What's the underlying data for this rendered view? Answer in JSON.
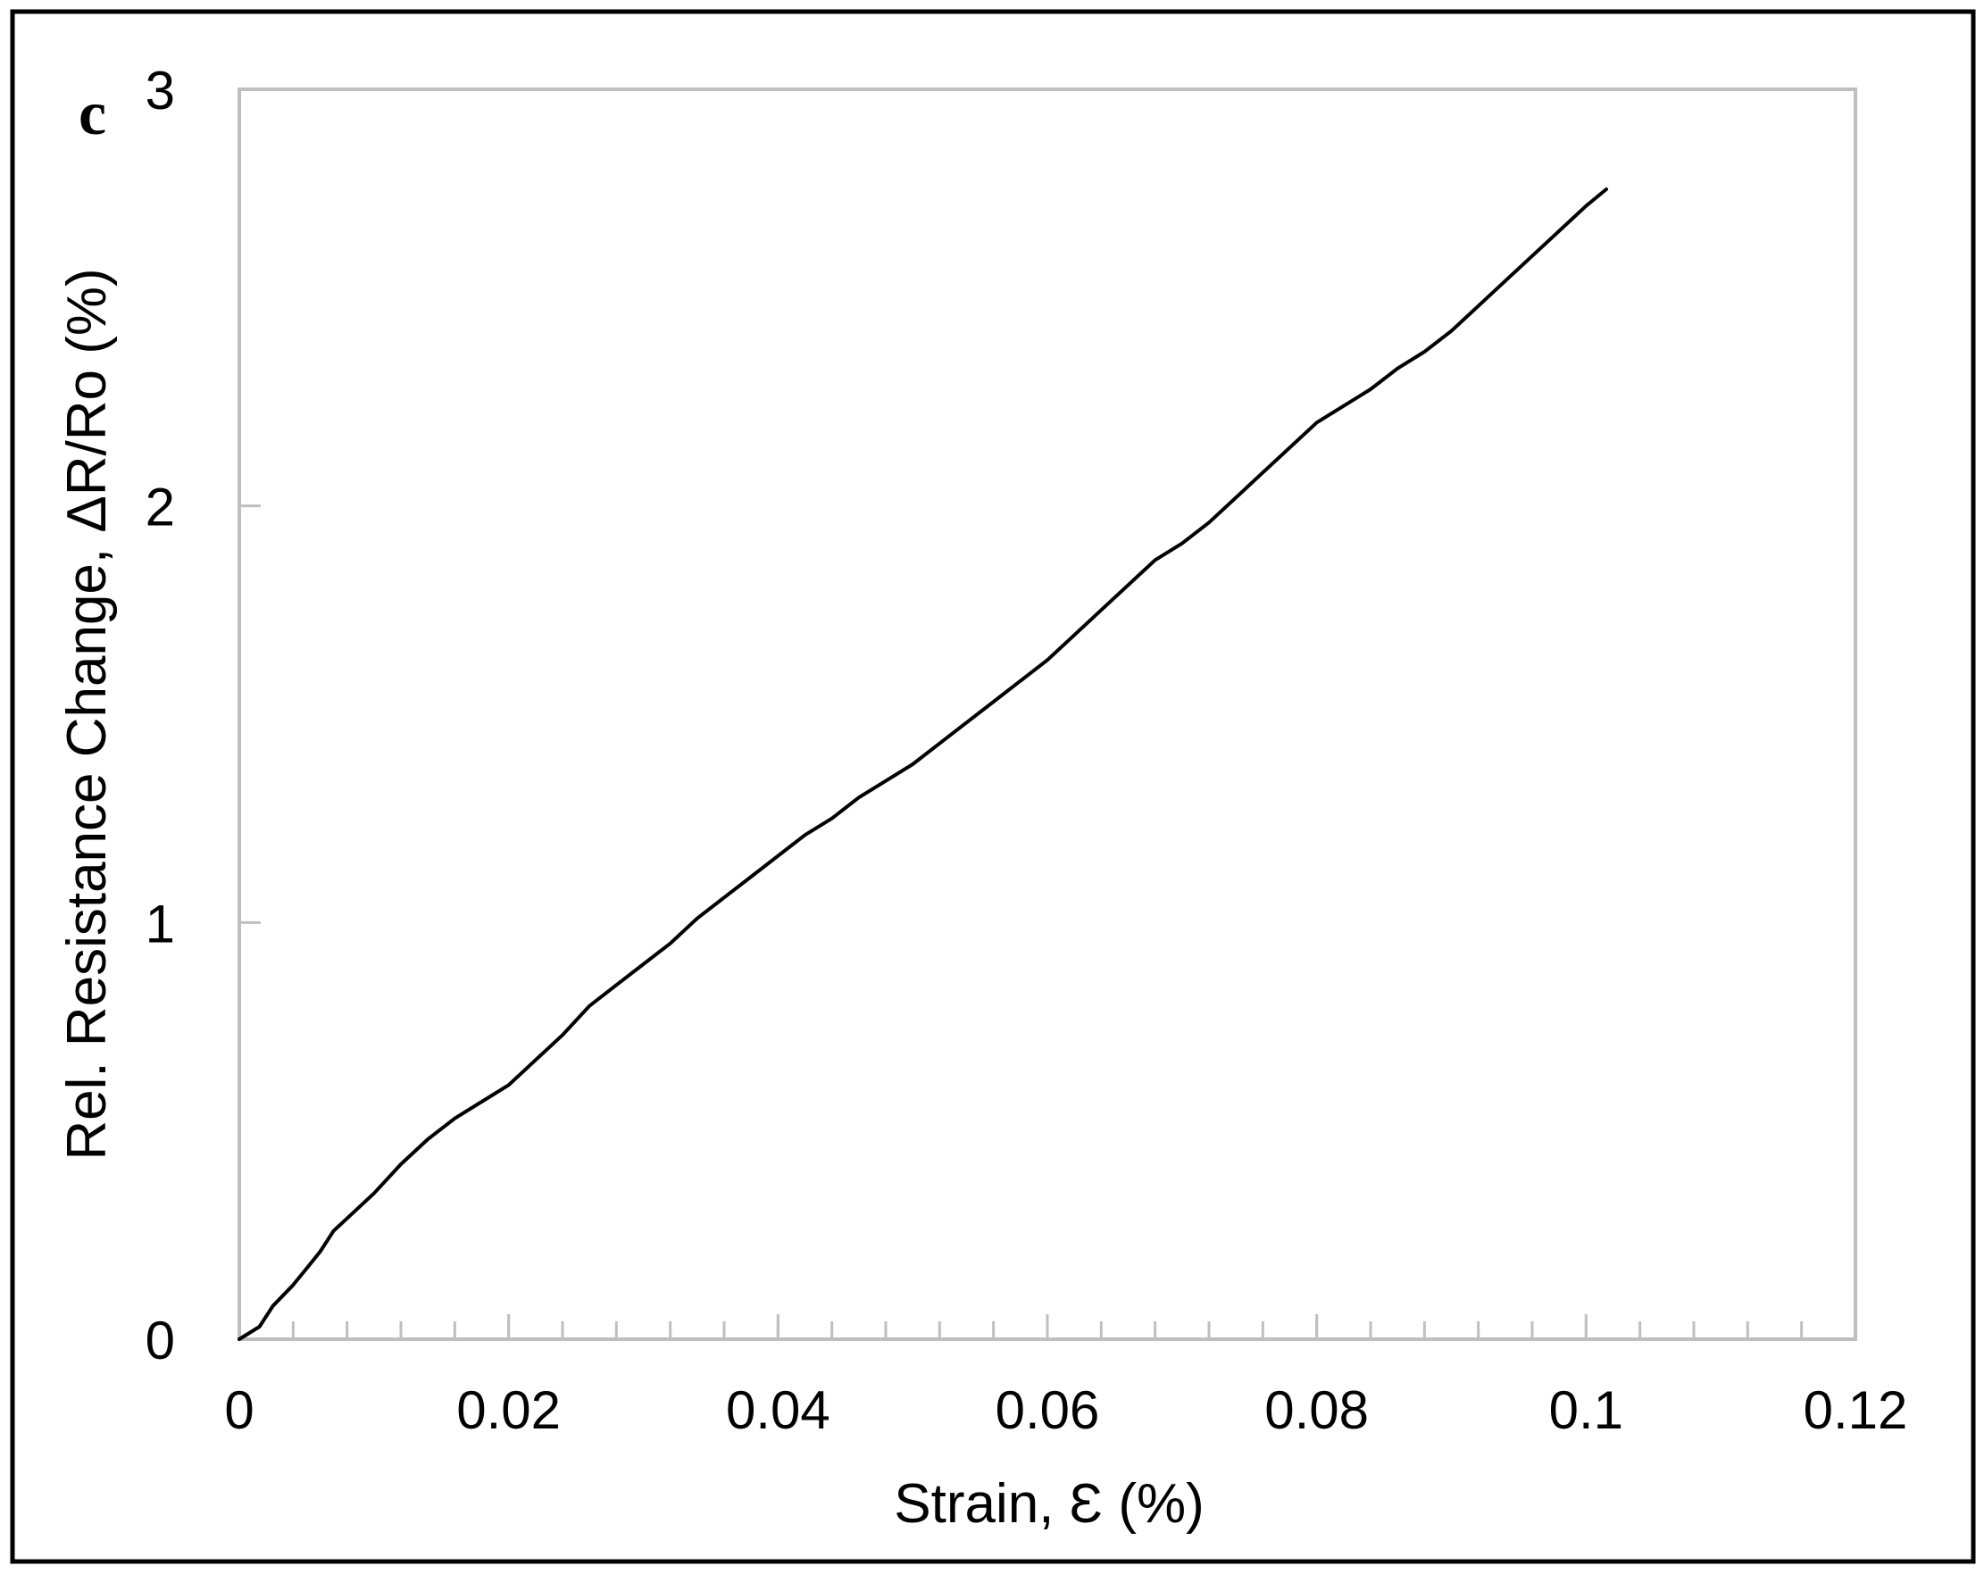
{
  "chart_data": {
    "type": "line",
    "panel_label": "c",
    "xlabel": "Strain, Ɛ (%)",
    "ylabel": "Rel. Resistance Change, ΔR/Ro (%)",
    "xlim": [
      0,
      0.12
    ],
    "ylim": [
      0,
      3
    ],
    "x_ticks": [
      0,
      0.02,
      0.04,
      0.06,
      0.08,
      0.1,
      0.12
    ],
    "x_tick_labels": [
      "0",
      "0.02",
      "0.04",
      "0.06",
      "0.08",
      "0.1",
      "0.12"
    ],
    "x_minor_step": 0.004,
    "y_ticks": [
      0,
      1,
      2,
      3
    ],
    "y_tick_labels": [
      "0",
      "1",
      "2",
      "3"
    ],
    "grid": false,
    "legend": "none",
    "colors": {
      "series": "#000000",
      "axes": "#bfbfbf",
      "text": "#000000",
      "frame": "#000000"
    },
    "series": [
      {
        "x": [
          0.0,
          0.0015,
          0.0025,
          0.004,
          0.005,
          0.006,
          0.007,
          0.008,
          0.01,
          0.012,
          0.014,
          0.016,
          0.018,
          0.02,
          0.022,
          0.024,
          0.026,
          0.028,
          0.03,
          0.032,
          0.034,
          0.036,
          0.038,
          0.04,
          0.042,
          0.044,
          0.046,
          0.048,
          0.05,
          0.052,
          0.054,
          0.056,
          0.058,
          0.06,
          0.062,
          0.064,
          0.066,
          0.068,
          0.07,
          0.072,
          0.074,
          0.076,
          0.078,
          0.08,
          0.082,
          0.084,
          0.086,
          0.088,
          0.09,
          0.092,
          0.094,
          0.096,
          0.098,
          0.1,
          0.1015
        ],
        "y": [
          0.0,
          0.03,
          0.08,
          0.13,
          0.17,
          0.21,
          0.26,
          0.29,
          0.35,
          0.42,
          0.48,
          0.53,
          0.57,
          0.61,
          0.67,
          0.73,
          0.8,
          0.85,
          0.9,
          0.95,
          1.01,
          1.06,
          1.11,
          1.16,
          1.21,
          1.25,
          1.3,
          1.34,
          1.38,
          1.43,
          1.48,
          1.53,
          1.58,
          1.63,
          1.69,
          1.75,
          1.81,
          1.87,
          1.91,
          1.96,
          2.02,
          2.08,
          2.14,
          2.2,
          2.24,
          2.28,
          2.33,
          2.37,
          2.42,
          2.48,
          2.54,
          2.6,
          2.66,
          2.72,
          2.76
        ]
      }
    ]
  }
}
